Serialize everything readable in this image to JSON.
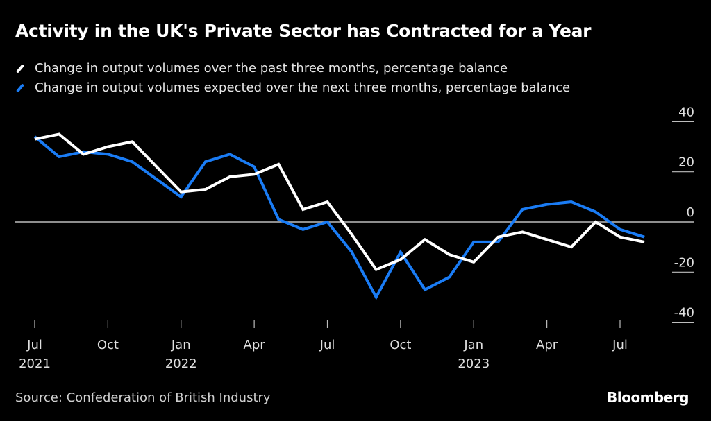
{
  "chart_data": {
    "type": "line",
    "title": "Activity in the UK's Private Sector has Contracted for a Year",
    "x": [
      "2021-07",
      "2021-08",
      "2021-09",
      "2021-10",
      "2021-11",
      "2021-12",
      "2022-01",
      "2022-02",
      "2022-03",
      "2022-04",
      "2022-05",
      "2022-06",
      "2022-07",
      "2022-08",
      "2022-09",
      "2022-10",
      "2022-11",
      "2022-12",
      "2023-01",
      "2023-02",
      "2023-03",
      "2023-04",
      "2023-05",
      "2023-06",
      "2023-07",
      "2023-08"
    ],
    "series": [
      {
        "name": "Change in output volumes over the past three months, percentage balance",
        "color": "#ffffff",
        "values": [
          33,
          35,
          27,
          30,
          32,
          22,
          12,
          13,
          18,
          19,
          23,
          5,
          8,
          -5,
          -19,
          -15,
          -7,
          -13,
          -16,
          -6,
          -4,
          -7,
          -10,
          0,
          -6,
          -8
        ]
      },
      {
        "name": "Change in output volumes expected over the next three months, percentage balance",
        "color": "#1a7cf5",
        "values": [
          34,
          26,
          28,
          27,
          24,
          17,
          10,
          24,
          27,
          22,
          1,
          -3,
          0,
          -12,
          -30,
          -12,
          -27,
          -22,
          -8,
          -8,
          5,
          7,
          8,
          4,
          -3,
          -6
        ]
      }
    ],
    "ylim": [
      -40,
      40
    ],
    "yticks": [
      40,
      20,
      0,
      -20,
      -40
    ],
    "ytick_labels": [
      "40",
      "20",
      "0",
      "-20",
      "-40"
    ],
    "xticks": [
      {
        "month": "Jul",
        "year": "2021",
        "index": 0
      },
      {
        "month": "Oct",
        "year": "",
        "index": 3
      },
      {
        "month": "Jan",
        "year": "2022",
        "index": 6
      },
      {
        "month": "Apr",
        "year": "",
        "index": 9
      },
      {
        "month": "Jul",
        "year": "",
        "index": 12
      },
      {
        "month": "Oct",
        "year": "",
        "index": 15
      },
      {
        "month": "Jan",
        "year": "2023",
        "index": 18
      },
      {
        "month": "Apr",
        "year": "",
        "index": 21
      },
      {
        "month": "Jul",
        "year": "",
        "index": 24
      }
    ],
    "axis_side": "right",
    "grid": false,
    "legend_position": "top-left"
  },
  "footer": {
    "source": "Source: Confederation of British Industry",
    "brand": "Bloomberg"
  }
}
